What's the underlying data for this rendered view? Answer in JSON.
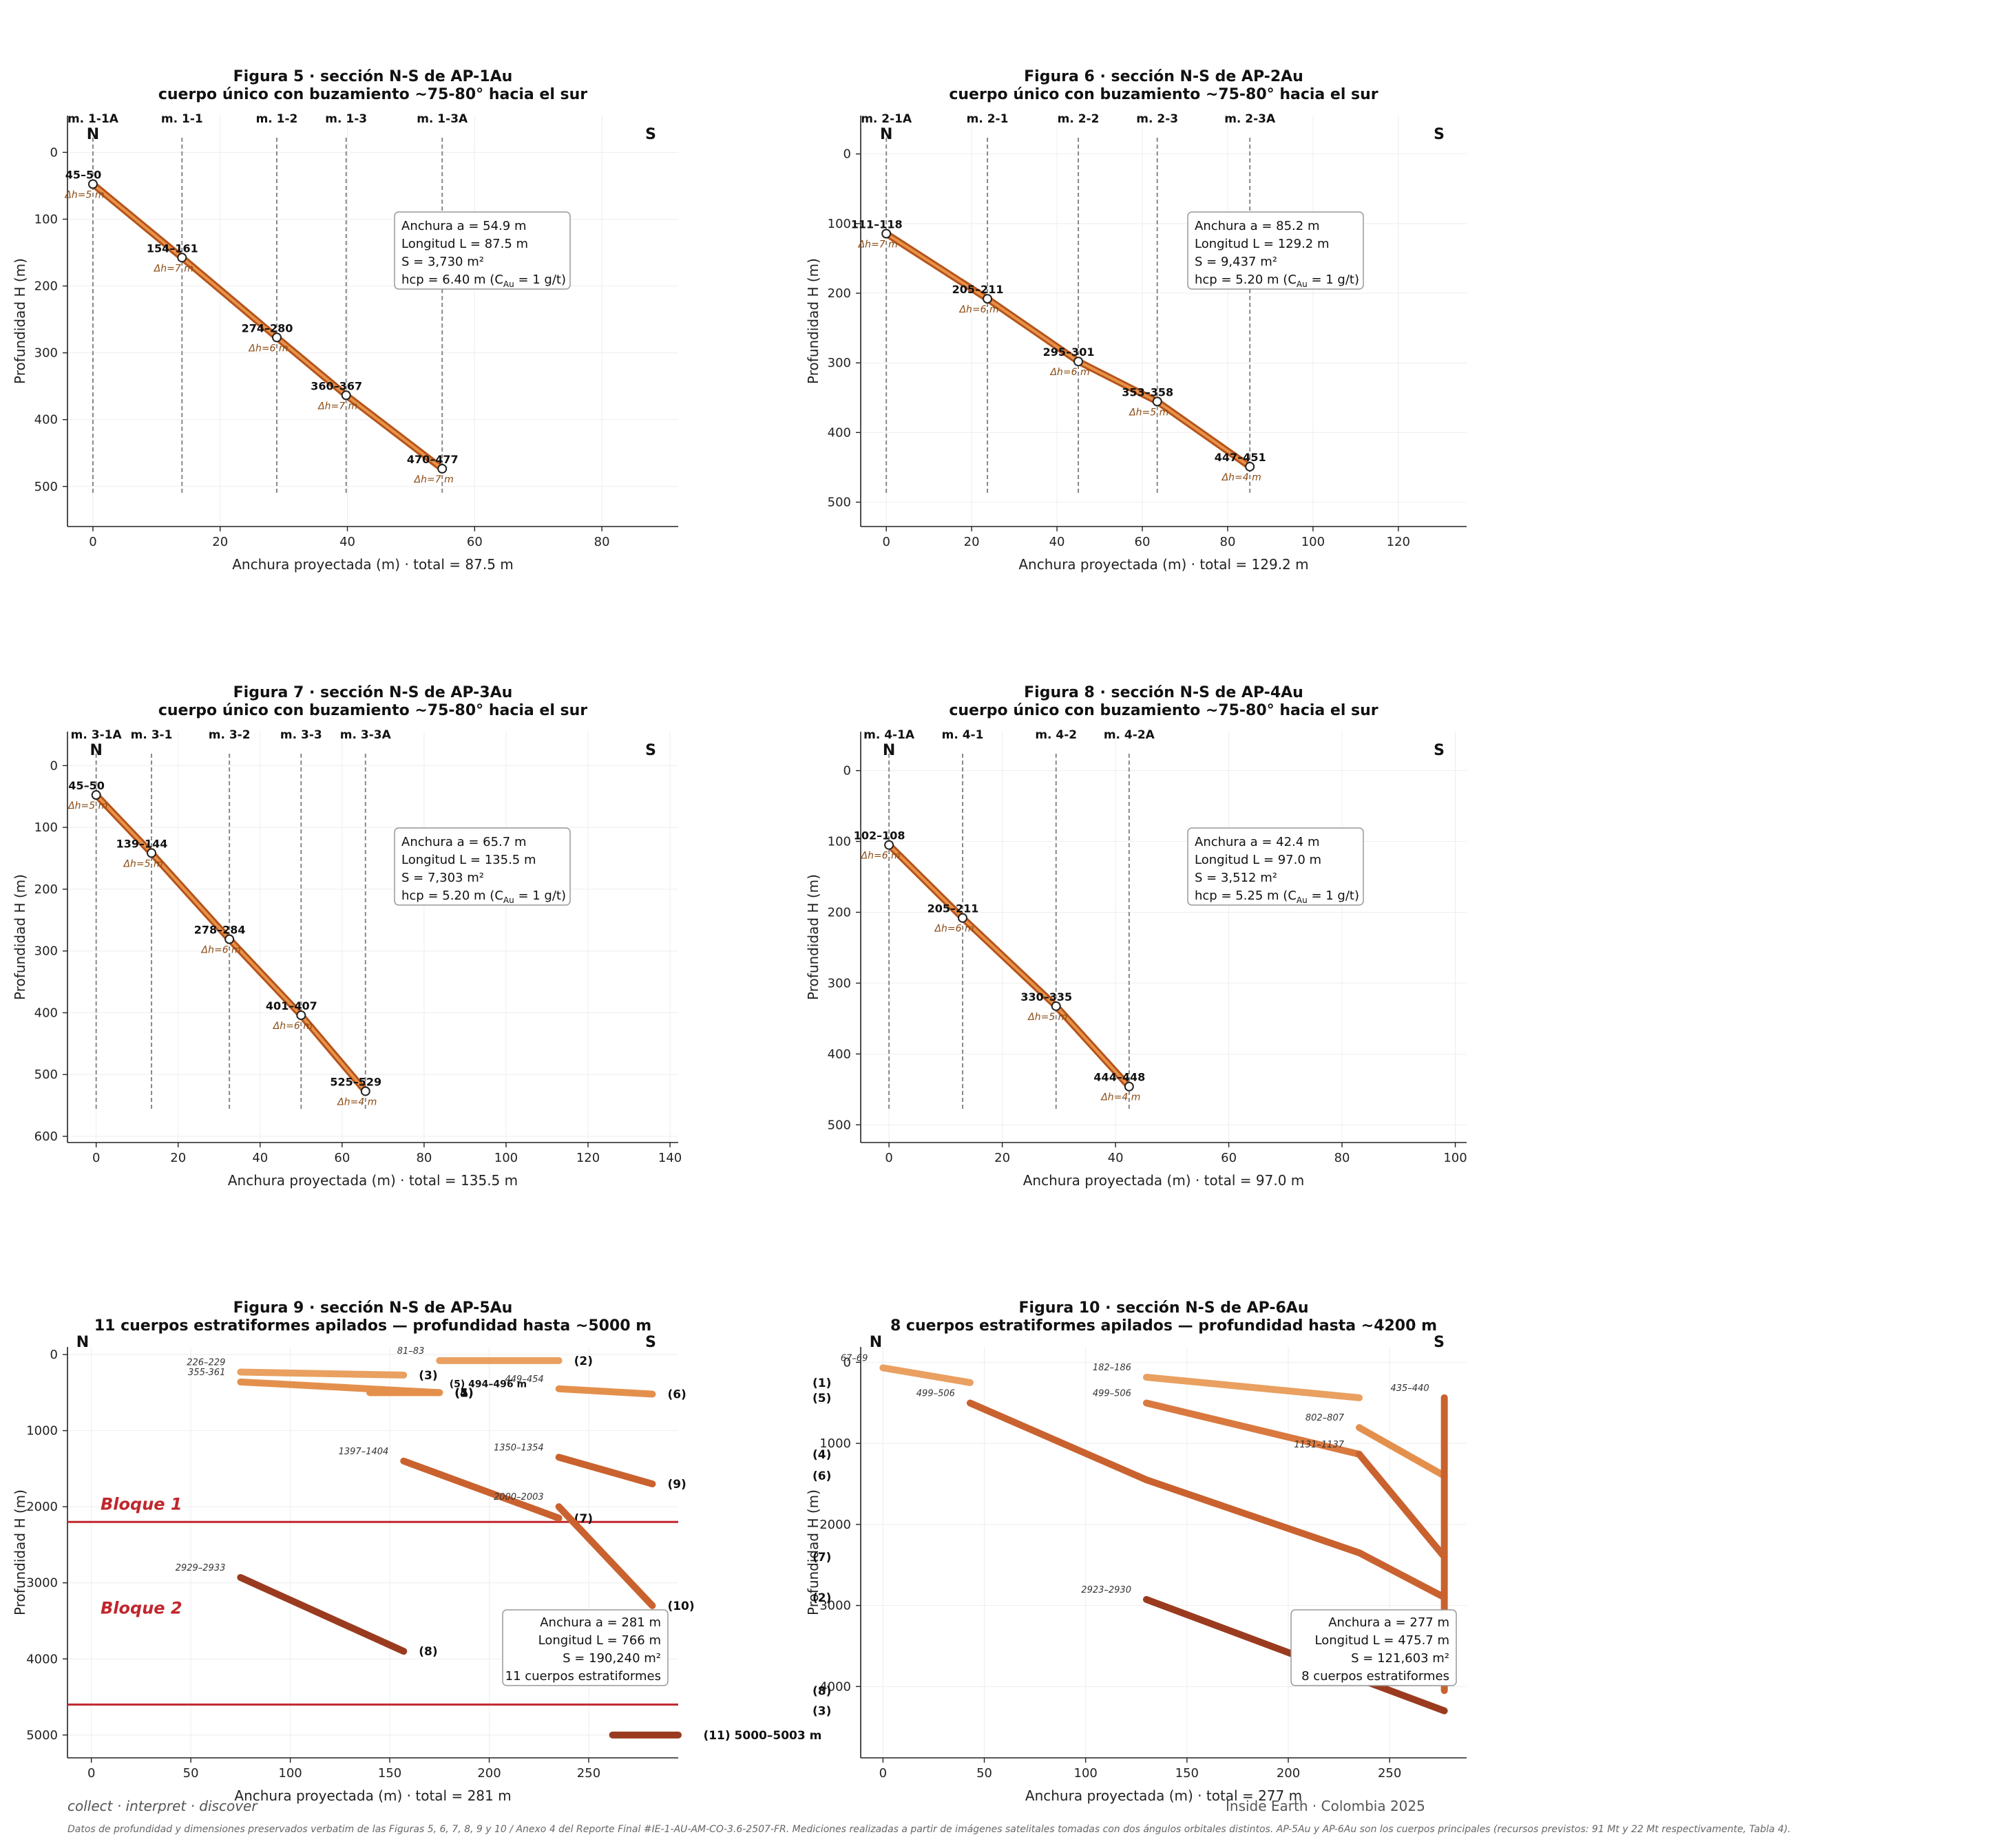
{
  "footer": {
    "left": "collect · interpret · discover",
    "right": "Inside Earth · Colombia 2025",
    "note": "Datos de profundidad y dimensiones preservados verbatim de las Figuras 5, 6, 7, 8, 9 y 10 / Anexo 4 del Reporte Final #IE-1-AU-AM-CO-3.6-2507-FR. Mediciones realizadas a partir de imágenes satelitales tomadas con dos ángulos orbitales distintos. AP-5Au y AP-6Au son los cuerpos principales (recursos previstos: 91 Mt y 22 Mt respectivamente, Tabla 4)."
  },
  "colors": {
    "vein": "#b5541a",
    "vein_light": "#e9924a",
    "dash": "#888888",
    "block": "#c0272d",
    "body_colors": [
      "#e9a060",
      "#e4904d",
      "#d9793f",
      "#c9622f",
      "#b34f26",
      "#9a3b1f"
    ]
  },
  "chart_data": [
    {
      "type": "line",
      "title": "Figura 5 · sección N-S de AP-1Au",
      "subtitle": "cuerpo único con buzamiento ~75-80° hacia el sur",
      "xlabel": "Anchura proyectada (m)  ·  total = 87.5 m",
      "ylabel": "Profundidad H (m)",
      "xlim": [
        -4,
        92
      ],
      "ylim": [
        560,
        -55
      ],
      "xticks": [
        0,
        20,
        40,
        60,
        80
      ],
      "yticks": [
        0,
        100,
        200,
        300,
        400,
        500
      ],
      "n_label": "N",
      "s_label": "S",
      "boreholes": [
        {
          "name": "m. 1-1A",
          "x": 0
        },
        {
          "name": "m. 1-1",
          "x": 14
        },
        {
          "name": "m. 1-2",
          "x": 28.9
        },
        {
          "name": "m. 1-3",
          "x": 39.8
        },
        {
          "name": "m. 1-3A",
          "x": 54.9
        }
      ],
      "points": [
        {
          "x": 0,
          "y": 47.5,
          "label": "45–50",
          "dh": "Δh=5 m"
        },
        {
          "x": 14,
          "y": 157.5,
          "label": "154–161",
          "dh": "Δh=7 m"
        },
        {
          "x": 28.9,
          "y": 277,
          "label": "274–280",
          "dh": "Δh=6 m"
        },
        {
          "x": 39.8,
          "y": 363.5,
          "label": "360–367",
          "dh": "Δh=7 m"
        },
        {
          "x": 54.9,
          "y": 473.5,
          "label": "470–477",
          "dh": "Δh=7 m"
        }
      ],
      "info": [
        "Anchura  a = 54.9 m",
        "Longitud L = 87.5 m",
        "S = 3,730 m²",
        "hcp = 6.40 m  (C",
        "Au",
        " = 1 g/t)"
      ]
    },
    {
      "type": "line",
      "title": "Figura 6 · sección N-S de AP-2Au",
      "subtitle": "cuerpo único con buzamiento ~75-80° hacia el sur",
      "xlabel": "Anchura proyectada (m)  ·  total = 129.2 m",
      "ylabel": "Profundidad H (m)",
      "xlim": [
        -6,
        136
      ],
      "ylim": [
        535,
        -55
      ],
      "xticks": [
        0,
        20,
        40,
        60,
        80,
        100,
        120
      ],
      "yticks": [
        0,
        100,
        200,
        300,
        400,
        500
      ],
      "n_label": "N",
      "s_label": "S",
      "boreholes": [
        {
          "name": "m. 2-1A",
          "x": 0
        },
        {
          "name": "m. 2-1",
          "x": 23.7
        },
        {
          "name": "m. 2-2",
          "x": 45
        },
        {
          "name": "m. 2-3",
          "x": 63.5
        },
        {
          "name": "m. 2-3A",
          "x": 85.2
        }
      ],
      "points": [
        {
          "x": 0,
          "y": 114.5,
          "label": "111–118",
          "dh": "Δh=7 m"
        },
        {
          "x": 23.7,
          "y": 208,
          "label": "205–211",
          "dh": "Δh=6 m"
        },
        {
          "x": 45,
          "y": 298,
          "label": "295–301",
          "dh": "Δh=6 m"
        },
        {
          "x": 63.5,
          "y": 355.5,
          "label": "353–358",
          "dh": "Δh=5 m"
        },
        {
          "x": 85.2,
          "y": 449,
          "label": "447–451",
          "dh": "Δh=4 m"
        }
      ],
      "info": [
        "Anchura  a = 85.2 m",
        "Longitud L = 129.2 m",
        "S = 9,437 m²",
        "hcp = 5.20 m  (C",
        "Au",
        " = 1 g/t)"
      ]
    },
    {
      "type": "line",
      "title": "Figura 7 · sección N-S de AP-3Au",
      "subtitle": "cuerpo único con buzamiento ~75-80° hacia el sur",
      "xlabel": "Anchura proyectada (m)  ·  total = 135.5 m",
      "ylabel": "Profundidad H (m)",
      "xlim": [
        -7,
        142
      ],
      "ylim": [
        610,
        -55
      ],
      "xticks": [
        0,
        20,
        40,
        60,
        80,
        100,
        120,
        140
      ],
      "yticks": [
        0,
        100,
        200,
        300,
        400,
        500,
        600
      ],
      "n_label": "N",
      "s_label": "S",
      "boreholes": [
        {
          "name": "m. 3-1A",
          "x": 0
        },
        {
          "name": "m. 3-1",
          "x": 13.5
        },
        {
          "name": "m. 3-2",
          "x": 32.5
        },
        {
          "name": "m. 3-3",
          "x": 50
        },
        {
          "name": "m. 3-3A",
          "x": 65.7
        }
      ],
      "points": [
        {
          "x": 0,
          "y": 47.5,
          "label": "45–50",
          "dh": "Δh=5 m"
        },
        {
          "x": 13.5,
          "y": 141.5,
          "label": "139–144",
          "dh": "Δh=5 m"
        },
        {
          "x": 32.5,
          "y": 281,
          "label": "278–284",
          "dh": "Δh=6 m"
        },
        {
          "x": 50,
          "y": 404,
          "label": "401–407",
          "dh": "Δh=6 m"
        },
        {
          "x": 65.7,
          "y": 527,
          "label": "525–529",
          "dh": "Δh=4 m"
        }
      ],
      "info": [
        "Anchura  a = 65.7 m",
        "Longitud L = 135.5 m",
        "S = 7,303 m²",
        "hcp = 5.20 m  (C",
        "Au",
        " = 1 g/t)"
      ]
    },
    {
      "type": "line",
      "title": "Figura 8 · sección N-S de AP-4Au",
      "subtitle": "cuerpo único con buzamiento ~75-80° hacia el sur",
      "xlabel": "Anchura proyectada (m)  ·  total = 97.0 m",
      "ylabel": "Profundidad H (m)",
      "xlim": [
        -5,
        102
      ],
      "ylim": [
        525,
        -55
      ],
      "xticks": [
        0,
        20,
        40,
        60,
        80,
        100
      ],
      "yticks": [
        0,
        100,
        200,
        300,
        400,
        500
      ],
      "n_label": "N",
      "s_label": "S",
      "boreholes": [
        {
          "name": "m. 4-1A",
          "x": 0
        },
        {
          "name": "m. 4-1",
          "x": 13
        },
        {
          "name": "m. 4-2",
          "x": 29.5
        },
        {
          "name": "m. 4-2A",
          "x": 42.4
        }
      ],
      "points": [
        {
          "x": 0,
          "y": 105,
          "label": "102–108",
          "dh": "Δh=6 m"
        },
        {
          "x": 13,
          "y": 208,
          "label": "205–211",
          "dh": "Δh=6 m"
        },
        {
          "x": 29.5,
          "y": 332.5,
          "label": "330–335",
          "dh": "Δh=5 m"
        },
        {
          "x": 42.4,
          "y": 446,
          "label": "444–448",
          "dh": "Δh=4 m"
        }
      ],
      "info": [
        "Anchura  a = 42.4 m",
        "Longitud L = 97.0 m",
        "S = 3,512 m²",
        "hcp = 5.25 m  (C",
        "Au",
        " = 1 g/t)"
      ]
    },
    {
      "type": "line",
      "title": "Figura 9 · sección N-S de AP-5Au",
      "subtitle": "11 cuerpos estratiformes apilados — profundidad hasta ~5000 m",
      "xlabel": "Anchura proyectada (m)  ·  total = 281 m",
      "ylabel": "Profundidad H (m)",
      "xlim": [
        -12,
        295
      ],
      "ylim": [
        5300,
        -100
      ],
      "xticks": [
        0,
        50,
        100,
        150,
        200,
        250
      ],
      "yticks": [
        0,
        1000,
        2000,
        3000,
        4000,
        5000
      ],
      "n_label": "N",
      "s_label": "S",
      "blocks": [
        {
          "label": "Bloque 1",
          "y": 2200
        },
        {
          "label": "Bloque 2",
          "y": 4600
        }
      ],
      "bodies": [
        {
          "id": "(1)",
          "points": [
            [
              140,
              500
            ],
            [
              175,
              500
            ]
          ],
          "color": 0,
          "tag": ""
        },
        {
          "id": "(2)",
          "points": [
            [
              175,
              80
            ],
            [
              235,
              80
            ]
          ],
          "color": 0,
          "tag": "81–83"
        },
        {
          "id": "(3)",
          "points": [
            [
              75,
              230
            ],
            [
              157,
              270
            ]
          ],
          "color": 0,
          "tag": "226–229"
        },
        {
          "id": "(4)",
          "points": [
            [
              75,
              360
            ],
            [
              175,
              500
            ]
          ],
          "color": 1,
          "tag": "355-361"
        },
        {
          "id": "(5)",
          "points": [
            [
              140,
              500
            ],
            [
              175,
              500
            ]
          ],
          "color": 1,
          "tag": ""
        },
        {
          "id": "(6)",
          "points": [
            [
              235,
              450
            ],
            [
              282,
              520
            ]
          ],
          "color": 1,
          "tag": "449–454"
        },
        {
          "id": "(7)",
          "points": [
            [
              157,
              1400
            ],
            [
              235,
              2150
            ]
          ],
          "color": 3,
          "tag": "1397–1404"
        },
        {
          "id": "(8)",
          "points": [
            [
              75,
              2930
            ],
            [
              157,
              3900
            ]
          ],
          "color": 5,
          "tag": "2929–2933"
        },
        {
          "id": "(9)",
          "points": [
            [
              235,
              1350
            ],
            [
              282,
              1700
            ]
          ],
          "color": 3,
          "tag": "1350–1354"
        },
        {
          "id": "(10)",
          "points": [
            [
              235,
              2000
            ],
            [
              282,
              3300
            ]
          ],
          "color": 3,
          "tag": "2000–2003"
        },
        {
          "id": "(11)  5000–5003 m",
          "points": [
            [
              262,
              5000
            ],
            [
              300,
              5000
            ]
          ],
          "color": 5,
          "tag": ""
        }
      ],
      "inline_label": "(5)  494–496 m",
      "info": [
        "Anchura  a = 281 m",
        "Longitud L = 766 m",
        "S = 190,240 m²",
        "11 cuerpos estratiformes"
      ]
    },
    {
      "type": "line",
      "title": "Figura 10 · sección N-S de AP-6Au",
      "subtitle": "8 cuerpos estratiformes apilados — profundidad hasta ~4200 m",
      "xlabel": "Anchura proyectada (m)  ·  total = 277 m",
      "ylabel": "Profundidad H (m)",
      "xlim": [
        -11,
        288
      ],
      "ylim": [
        4880,
        -190
      ],
      "xticks": [
        0,
        50,
        100,
        150,
        200,
        250
      ],
      "yticks": [
        0,
        1000,
        2000,
        3000,
        4000
      ],
      "n_label": "N",
      "s_label": "S",
      "bodies": [
        {
          "id": "(1)",
          "points": [
            [
              0,
              68
            ],
            [
              43,
              250
            ]
          ],
          "color": 0,
          "tag": "67–69"
        },
        {
          "id": "(5)",
          "points": [
            [
              130,
              184
            ],
            [
              235,
              437
            ]
          ],
          "color": 0,
          "tag": "182–186"
        },
        {
          "id": "(6)",
          "points": [
            [
              235,
              805
            ],
            [
              277,
              1400
            ]
          ],
          "color": 1,
          "tag": "802–807"
        },
        {
          "id": "(4)",
          "points": [
            [
              130,
              502
            ],
            [
              235,
              1134
            ]
          ],
          "color": 2,
          "tag": "499–506"
        },
        {
          "id": "(7)",
          "points": [
            [
              235,
              1134
            ],
            [
              277,
              2400
            ]
          ],
          "color": 3,
          "tag": "1131–1137"
        },
        {
          "id": "(2)",
          "points": [
            [
              43,
              502
            ],
            [
              130,
              1450
            ],
            [
              235,
              2350
            ],
            [
              277,
              2900
            ]
          ],
          "color": 3,
          "tag": "499–506"
        },
        {
          "id": "(8)",
          "points": [
            [
              277,
              437
            ],
            [
              277,
              4050
            ]
          ],
          "color": 3,
          "tag": "435–440"
        },
        {
          "id": "(3)",
          "points": [
            [
              130,
              2926
            ],
            [
              277,
              4300
            ]
          ],
          "color": 5,
          "tag": "2923–2930"
        }
      ],
      "info": [
        "Anchura  a = 277 m",
        "Longitud L = 475.7 m",
        "S = 121,603 m²",
        "8 cuerpos estratiformes"
      ]
    }
  ]
}
